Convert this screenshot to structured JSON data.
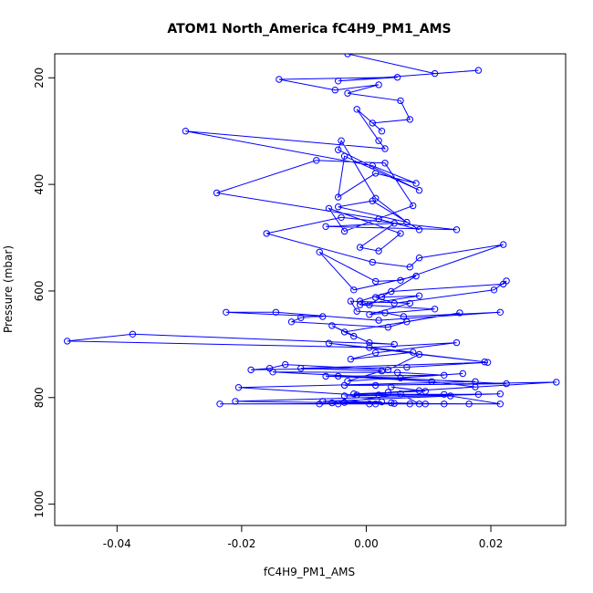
{
  "chart_data": {
    "type": "scatter",
    "title": "ATOM1 North_America fC4H9_PM1_AMS",
    "xlabel": "fC4H9_PM1_AMS",
    "ylabel": "Pressure (mbar)",
    "xlim": [
      -0.05,
      0.032
    ],
    "ylim": [
      1040,
      155
    ],
    "y_reversed": true,
    "x_ticks": [
      -0.04,
      -0.02,
      0.0,
      0.02
    ],
    "x_tick_labels": [
      "-0.04",
      "-0.02",
      "0.00",
      "0.02"
    ],
    "y_ticks": [
      200,
      400,
      600,
      800,
      1000
    ],
    "y_tick_labels": [
      "200",
      "400",
      "600",
      "800",
      "1000"
    ],
    "grid": false,
    "legend": "none",
    "series_color": "#0000ff",
    "mode": "lines+markers",
    "series": [
      {
        "x": [
          -0.003,
          0.011,
          0.018,
          -0.0045,
          0.005,
          -0.014,
          -0.005,
          0.002,
          -0.003,
          0.0055,
          0.007,
          0.001,
          0.0025,
          -0.0015,
          0.002,
          0.003,
          -0.029,
          0.001,
          0.008,
          0.0015,
          -0.0045,
          -0.0035,
          0.0085,
          -0.0045,
          -0.004,
          0.0015,
          0.0065,
          -0.0045,
          0.001,
          0.0085,
          0.002,
          -0.024,
          -0.008,
          0.003,
          0.0075,
          -0.0035,
          -0.006,
          0.0055,
          0.002,
          -0.001,
          0.0045,
          -0.0065,
          0.0145,
          -0.004,
          -0.016,
          0.001,
          0.007,
          0.0085,
          0.022,
          0.0055,
          0.0015,
          -0.0075,
          -0.002,
          0.008,
          0.0025,
          0.0005,
          -0.001,
          0.004,
          0.022,
          0.0225,
          0.0205,
          0.0045,
          0.0015,
          0.0085,
          -0.001,
          0.011,
          0.0005,
          0.007,
          -0.0025,
          -0.0015,
          0.003,
          0.006,
          0.0215,
          0.002,
          -0.0145,
          -0.0225,
          -0.007,
          -0.0105,
          -0.012,
          0.0035,
          0.0065,
          0.015,
          -0.0035,
          -0.002,
          -0.0055,
          0.0005,
          0.0045,
          -0.0375,
          -0.048,
          0.0005,
          0.0145,
          0.0015,
          -0.0025,
          0.0075,
          -0.006,
          0.019,
          0.0085,
          0.0035,
          -0.013,
          -0.0155,
          -0.0185,
          0.0065,
          0.0195,
          -0.0105,
          0.0025,
          -0.003,
          0.0155,
          0.0055,
          -0.0045,
          0.0105,
          0.0175,
          0.0035,
          0.0305,
          0.0015,
          -0.0035,
          0.0225,
          -0.015,
          0.005,
          0.0125,
          -0.0065,
          0.0175,
          -0.0205,
          -0.0015,
          0.0085,
          0.004,
          0.0095,
          -0.002,
          0.0125,
          0.018,
          0.002,
          -0.0035,
          0.0215,
          -0.021,
          0.0085,
          0.0055,
          -0.0035,
          0.0125,
          0.004,
          -0.0055,
          0.0025,
          -0.007,
          0.0135,
          0.0215,
          0.0045,
          -0.0235,
          0.0095,
          0.0015,
          -0.0045,
          0.0165,
          0.007,
          -0.0075,
          0.0005
        ],
        "y": [
          155,
          192,
          186,
          206,
          199,
          203,
          223,
          213,
          229,
          243,
          278,
          285,
          300,
          259,
          318,
          333,
          300,
          365,
          398,
          379,
          424,
          347,
          411,
          335,
          318,
          426,
          471,
          442,
          431,
          485,
          465,
          416,
          355,
          360,
          440,
          488,
          445,
          492,
          525,
          518,
          473,
          479,
          485,
          462,
          492,
          546,
          555,
          538,
          513,
          580,
          582,
          527,
          598,
          572,
          611,
          626,
          619,
          601,
          587,
          581,
          598,
          623,
          612,
          609,
          626,
          634,
          644,
          623,
          619,
          638,
          641,
          648,
          640,
          655,
          640,
          640,
          648,
          650,
          658,
          668,
          658,
          641,
          677,
          685,
          665,
          697,
          700,
          681,
          694,
          706,
          697,
          716,
          728,
          715,
          698,
          733,
          719,
          748,
          738,
          745,
          748,
          743,
          734,
          745,
          750,
          769,
          755,
          763,
          760,
          770,
          780,
          790,
          771,
          777,
          777,
          774,
          752,
          753,
          758,
          760,
          770,
          781,
          795,
          787,
          780,
          788,
          793,
          794,
          794,
          795,
          797,
          793,
          807,
          812,
          793,
          809,
          812,
          810,
          810,
          808,
          807,
          797,
          812,
          811,
          812,
          812,
          812,
          812,
          812,
          812,
          812,
          812
        ]
      }
    ]
  }
}
